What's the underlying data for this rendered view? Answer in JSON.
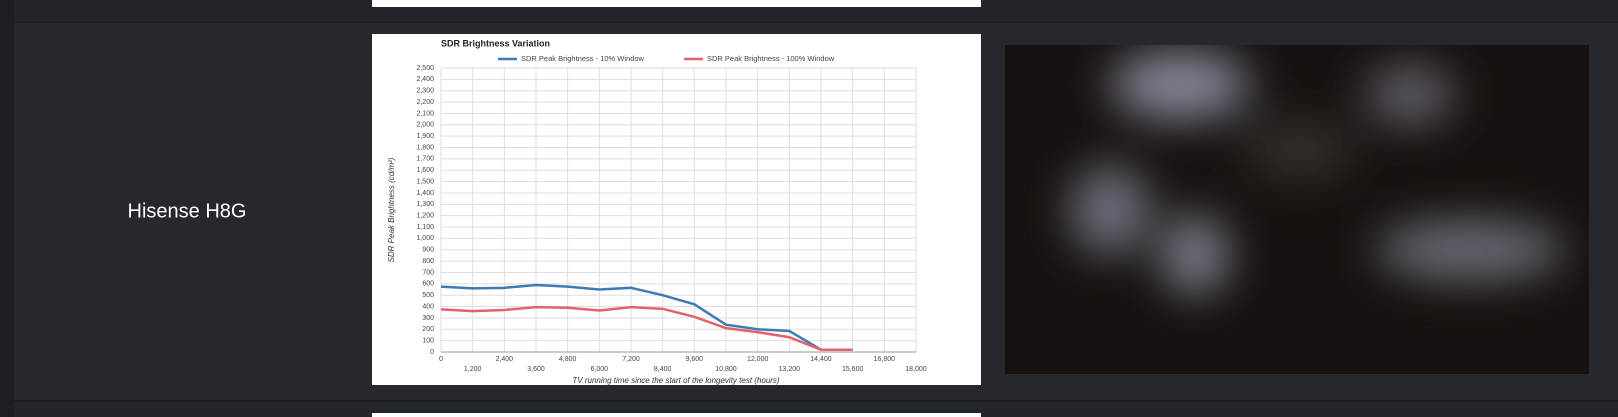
{
  "row_label": "Hisense H8G",
  "chart_data": {
    "type": "line",
    "title": "SDR Brightness Variation",
    "x_label": "TV running time since the start of the longevity test (hours)",
    "y_label": "SDR Peak Brightness (cd/m²)",
    "x": [
      0,
      1200,
      2400,
      3600,
      4800,
      6000,
      7200,
      8400,
      9600,
      10800,
      12000,
      13200,
      14400,
      15600
    ],
    "series": [
      {
        "name": "SDR Peak Brightness - 10% Window",
        "color": "#3f7ab5",
        "values": [
          575,
          560,
          565,
          590,
          575,
          550,
          565,
          500,
          420,
          240,
          200,
          185,
          20,
          null
        ]
      },
      {
        "name": "SDR Peak Brightness - 100% Window",
        "color": "#e0626a",
        "values": [
          375,
          360,
          370,
          395,
          390,
          365,
          395,
          380,
          310,
          210,
          175,
          130,
          20,
          20
        ]
      }
    ],
    "xlim": [
      0,
      18000
    ],
    "xticks": [
      0,
      {
        "value": 1200,
        "label": "1,200"
      },
      {
        "value": 2400,
        "label": "2,400"
      },
      {
        "value": 3600,
        "label": "3,600"
      },
      {
        "value": 4800,
        "label": "4,800"
      },
      {
        "value": 6000,
        "label": "6,000"
      },
      {
        "value": 7200,
        "label": "7,200"
      },
      {
        "value": 8400,
        "label": "8,400"
      },
      {
        "value": 9600,
        "label": "9,600"
      },
      {
        "value": 10800,
        "label": "10,800"
      },
      {
        "value": 12000,
        "label": "12,000"
      },
      {
        "value": 13200,
        "label": "13,200"
      },
      {
        "value": 14400,
        "label": "14,400"
      },
      {
        "value": 15600,
        "label": "15,600"
      },
      {
        "value": 16800,
        "label": "16,800"
      },
      {
        "value": 18000,
        "label": "18,000"
      }
    ],
    "ylim": [
      0,
      2500
    ],
    "yticks": [
      0,
      100,
      200,
      300,
      400,
      500,
      600,
      700,
      800,
      900,
      {
        "value": 1000,
        "label": "1,000"
      },
      {
        "value": 1100,
        "label": "1,100"
      },
      {
        "value": 1200,
        "label": "1,200"
      },
      {
        "value": 1300,
        "label": "1,300"
      },
      {
        "value": 1400,
        "label": "1,400"
      },
      {
        "value": 1500,
        "label": "1,500"
      },
      {
        "value": 1600,
        "label": "1,600"
      },
      {
        "value": 1700,
        "label": "1,700"
      },
      {
        "value": 1800,
        "label": "1,800"
      },
      {
        "value": 1900,
        "label": "1,900"
      },
      {
        "value": 2000,
        "label": "2,000"
      },
      {
        "value": 2100,
        "label": "2,100"
      },
      {
        "value": 2200,
        "label": "2,200"
      },
      {
        "value": 2300,
        "label": "2,300"
      },
      {
        "value": 2400,
        "label": "2,400"
      },
      {
        "value": 2500,
        "label": "2,500"
      }
    ],
    "grid": true
  }
}
